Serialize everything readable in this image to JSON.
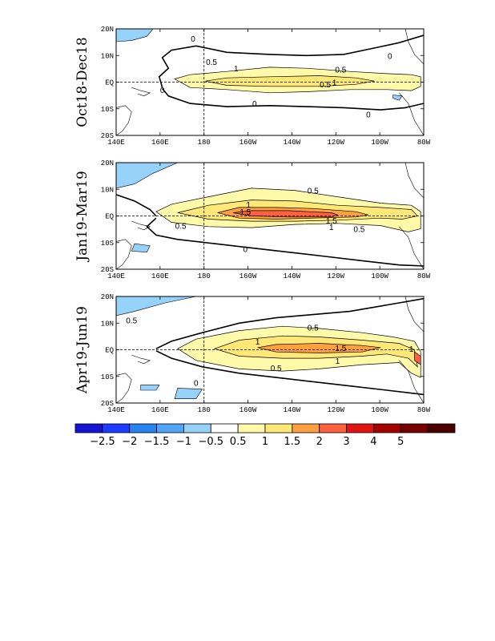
{
  "chart_data": {
    "type": "contour-map",
    "panels": [
      {
        "title": "Oct18-Dec18",
        "x_ticks": [
          "140E",
          "160E",
          "180",
          "160W",
          "140W",
          "120W",
          "100W",
          "80W"
        ],
        "y_ticks": [
          "20N",
          "10N",
          "EQ",
          "10S",
          "20S"
        ],
        "contour_labels": [
          "0.5",
          "1",
          "0.5",
          "0.5",
          "1",
          "0",
          "0",
          "0",
          "0",
          "0"
        ],
        "max_level": "1"
      },
      {
        "title": "Jan19-Mar19",
        "x_ticks": [
          "140E",
          "160E",
          "180",
          "160W",
          "140W",
          "120W",
          "100W",
          "80W"
        ],
        "y_ticks": [
          "20N",
          "10N",
          "EQ",
          "10S",
          "20S"
        ],
        "contour_labels": [
          "0.5",
          "1",
          "1.5",
          "1.5",
          "1",
          "0.5",
          "0.5",
          "0"
        ],
        "max_level": "1.5"
      },
      {
        "title": "Apr19-Jun19",
        "x_ticks": [
          "140E",
          "160E",
          "180",
          "160W",
          "140W",
          "120W",
          "100W",
          "80W"
        ],
        "y_ticks": [
          "20N",
          "10N",
          "EQ",
          "10S",
          "20S"
        ],
        "contour_labels": [
          "0.5",
          "0.5",
          "1",
          "1.5",
          "1",
          "1",
          "0.5",
          "0"
        ],
        "max_level": "1.5"
      }
    ],
    "colorbar": {
      "labels": [
        "-2.5",
        "-2",
        "-1.5",
        "-1",
        "-0.5",
        "0.5",
        "1",
        "1.5",
        "2",
        "3",
        "4",
        "5"
      ],
      "colors": [
        "#1414d2",
        "#1e3cff",
        "#2882f0",
        "#50a5f5",
        "#96d2fa",
        "#ffffff",
        "#fffaaa",
        "#ffe878",
        "#ffa040",
        "#ff6040",
        "#e11414",
        "#a50000",
        "#780000",
        "#4b0000"
      ]
    }
  }
}
